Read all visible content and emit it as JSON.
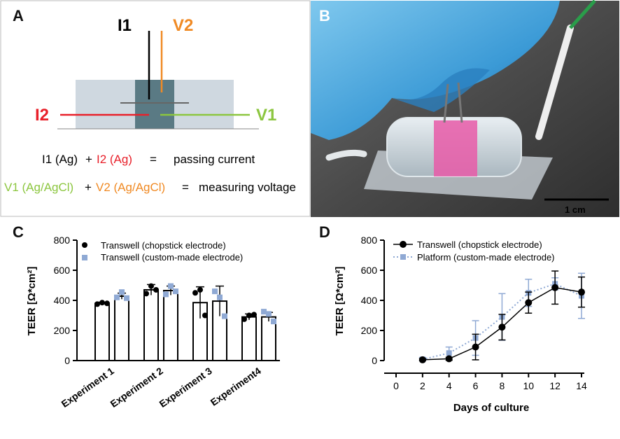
{
  "panels": {
    "a": "A",
    "b": "B",
    "c": "C",
    "d": "D"
  },
  "diagram": {
    "i1": "I1",
    "v2": "V2",
    "i2": "I2",
    "v1": "V1",
    "eq1_part1": "I1 (Ag)",
    "eq1_plus": "+",
    "eq1_part2": "I2 (Ag)",
    "eq1_equals": "=",
    "eq1_result": "passing current",
    "eq2_part1": "V1 (Ag/AgCl)",
    "eq2_plus": "+",
    "eq2_part2": "V2 (Ag/AgCl)",
    "eq2_equals": "=",
    "eq2_result": "measuring voltage",
    "colors": {
      "i1": "#000000",
      "v2": "#f08a24",
      "i2": "#e8202a",
      "v1": "#8cc63f"
    }
  },
  "photo": {
    "scale_label": "1 cm"
  },
  "chart_data": [
    {
      "type": "bar",
      "title": "",
      "ylabel": "TEER [Ω*cm²]",
      "xlabel": "",
      "ylim": [
        0,
        800
      ],
      "yticks": [
        "0",
        "200",
        "400",
        "600",
        "800"
      ],
      "categories": [
        "Experiment 1",
        "Experiment 2",
        "Experiment 3",
        "Experiment4"
      ],
      "series": [
        {
          "name": "Transwell (chopstick electrode)",
          "marker": "circle",
          "color": "#000000",
          "values": [
            380,
            470,
            385,
            290
          ],
          "err": [
            8,
            35,
            105,
            20
          ],
          "points": [
            [
              375,
              385,
              380
            ],
            [
              445,
              495,
              470
            ],
            [
              450,
              470,
              300
            ],
            [
              275,
              300,
              305
            ]
          ]
        },
        {
          "name": "Transwell (custom-made electrode)",
          "marker": "square",
          "color": "#8fa9d4",
          "values": [
            428,
            465,
            395,
            290
          ],
          "err": [
            20,
            30,
            100,
            30
          ],
          "points": [
            [
              420,
              455,
              415
            ],
            [
              440,
              495,
              460
            ],
            [
              460,
              420,
              295
            ],
            [
              325,
              310,
              260
            ]
          ]
        }
      ]
    },
    {
      "type": "line",
      "title": "",
      "ylabel": "TEER [Ω*cm²]",
      "xlabel": "Days of culture",
      "ylim": [
        0,
        800
      ],
      "xlim": [
        0,
        14
      ],
      "yticks": [
        "0",
        "200",
        "400",
        "600",
        "800"
      ],
      "xticks": [
        "0",
        "2",
        "4",
        "6",
        "8",
        "10",
        "12",
        "14"
      ],
      "series": [
        {
          "name": "Transwell (chopstick electrode)",
          "style": "solid",
          "color": "#000000",
          "x": [
            2,
            4,
            6,
            8,
            10,
            12,
            14
          ],
          "y": [
            5,
            12,
            90,
            222,
            385,
            485,
            455
          ],
          "err": [
            8,
            10,
            85,
            85,
            70,
            110,
            100
          ]
        },
        {
          "name": "Platform   (custom-made electrode)",
          "style": "dotted",
          "color": "#8fa9d4",
          "x": [
            2,
            4,
            6,
            8,
            10,
            12,
            14
          ],
          "y": [
            8,
            50,
            150,
            290,
            450,
            510,
            430
          ],
          "err": [
            12,
            40,
            115,
            155,
            90,
            40,
            150
          ]
        }
      ]
    }
  ]
}
